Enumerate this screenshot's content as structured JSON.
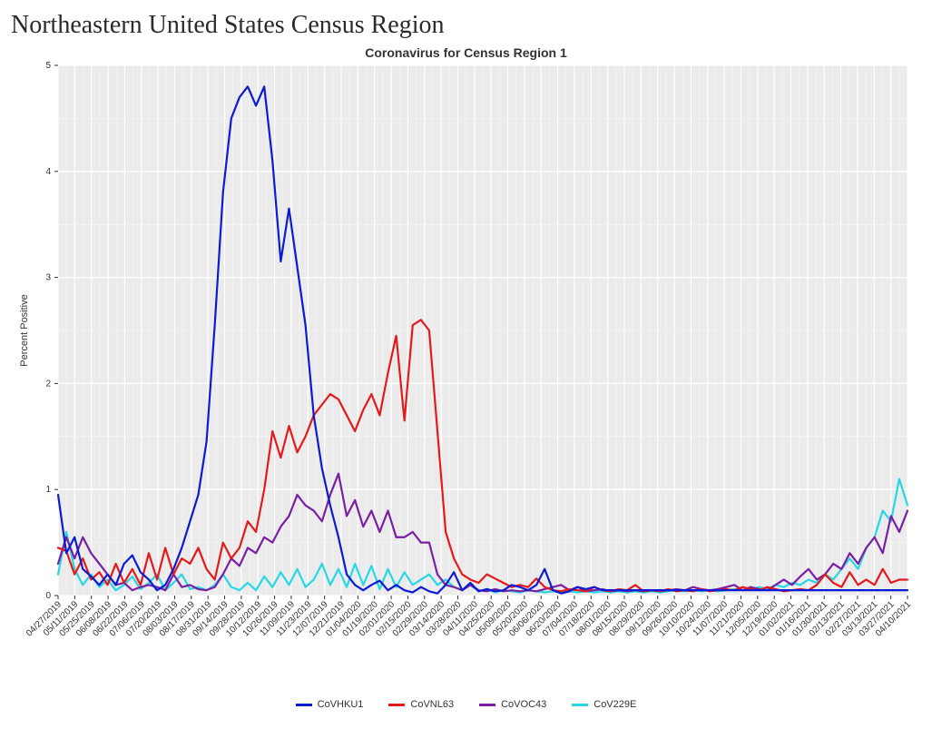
{
  "page_title": "Northeastern United States Census Region",
  "chart": {
    "type": "line",
    "title": "Coronavirus for Census Region 1",
    "title_fontsize": 14,
    "ylabel": "Percent Positive",
    "label_fontsize": 11,
    "ylim": [
      0,
      5
    ],
    "ytick_step": 1,
    "background_color": "#ebebeb",
    "grid_major_color": "#ffffff",
    "grid_minor_color": "#f5f5f5",
    "line_width": 2.2,
    "x_labels": [
      "04/27/2019",
      "05/11/2019",
      "05/25/2019",
      "06/08/2019",
      "06/22/2019",
      "07/06/2019",
      "07/20/2019",
      "08/03/2019",
      "08/17/2019",
      "08/31/2019",
      "09/14/2019",
      "09/28/2019",
      "10/12/2019",
      "10/26/2019",
      "11/09/2019",
      "11/23/2019",
      "12/07/2019",
      "12/21/2019",
      "01/04/2020",
      "01/19/2020",
      "02/01/2020",
      "02/15/2020",
      "02/29/2020",
      "03/14/2020",
      "03/28/2020",
      "04/11/2020",
      "04/25/2020",
      "05/09/2020",
      "05/20/2020",
      "06/06/2020",
      "06/20/2020",
      "07/04/2020",
      "07/18/2020",
      "08/01/2020",
      "08/15/2020",
      "08/29/2020",
      "09/12/2020",
      "09/26/2020",
      "10/10/2020",
      "10/24/2020",
      "11/07/2020",
      "11/21/2020",
      "12/05/2020",
      "12/19/2020",
      "01/02/2021",
      "01/16/2021",
      "01/30/2021",
      "02/13/2021",
      "02/27/2021",
      "03/13/2021",
      "03/27/2021",
      "04/10/2021"
    ],
    "series": [
      {
        "name": "CoVHKU1",
        "color": "#0b1bd1",
        "values": [
          0.95,
          0.4,
          0.55,
          0.25,
          0.18,
          0.1,
          0.2,
          0.1,
          0.3,
          0.38,
          0.22,
          0.15,
          0.05,
          0.1,
          0.25,
          0.45,
          0.7,
          0.95,
          1.45,
          2.55,
          3.8,
          4.5,
          4.7,
          4.8,
          4.62,
          4.8,
          4.1,
          3.15,
          3.65,
          3.1,
          2.55,
          1.7,
          1.2,
          0.85,
          0.55,
          0.2,
          0.1,
          0.05,
          0.1,
          0.14,
          0.05,
          0.1,
          0.05,
          0.03,
          0.08,
          0.04,
          0.02,
          0.1,
          0.22,
          0.05,
          0.12,
          0.04,
          0.06,
          0.04,
          0.05,
          0.1,
          0.08,
          0.05,
          0.1,
          0.25,
          0.05,
          0.02,
          0.04,
          0.08,
          0.06,
          0.08,
          0.05,
          0.05,
          0.05,
          0.05,
          0.05,
          0.05,
          0.05,
          0.05,
          0.05,
          0.05,
          0.05,
          0.05,
          0.05,
          0.05,
          0.05,
          0.05,
          0.05,
          0.05,
          0.05,
          0.05,
          0.05,
          0.05,
          0.05,
          0.05,
          0.05,
          0.05,
          0.05,
          0.05,
          0.05,
          0.05,
          0.05,
          0.05,
          0.05,
          0.05,
          0.05,
          0.05,
          0.05,
          0.05
        ]
      },
      {
        "name": "CoVNL63",
        "color": "#e31a1c",
        "values": [
          0.45,
          0.42,
          0.2,
          0.35,
          0.15,
          0.22,
          0.1,
          0.3,
          0.12,
          0.25,
          0.1,
          0.4,
          0.15,
          0.45,
          0.2,
          0.35,
          0.3,
          0.45,
          0.25,
          0.15,
          0.5,
          0.35,
          0.45,
          0.7,
          0.6,
          1.0,
          1.55,
          1.3,
          1.6,
          1.35,
          1.5,
          1.7,
          1.8,
          1.9,
          1.85,
          1.7,
          1.55,
          1.75,
          1.9,
          1.7,
          2.1,
          2.45,
          1.65,
          2.55,
          2.6,
          2.5,
          1.55,
          0.6,
          0.35,
          0.2,
          0.15,
          0.12,
          0.2,
          0.16,
          0.12,
          0.08,
          0.1,
          0.08,
          0.16,
          0.08,
          0.05,
          0.04,
          0.06,
          0.05,
          0.04,
          0.08,
          0.05,
          0.04,
          0.06,
          0.05,
          0.1,
          0.04,
          0.05,
          0.04,
          0.06,
          0.04,
          0.05,
          0.04,
          0.06,
          0.04,
          0.05,
          0.06,
          0.05,
          0.08,
          0.06,
          0.05,
          0.08,
          0.06,
          0.04,
          0.05,
          0.06,
          0.05,
          0.1,
          0.2,
          0.12,
          0.08,
          0.22,
          0.1,
          0.15,
          0.1,
          0.25,
          0.12,
          0.15,
          0.15
        ]
      },
      {
        "name": "CoVOC43",
        "color": "#7a1fa2",
        "values": [
          0.3,
          0.55,
          0.35,
          0.55,
          0.4,
          0.3,
          0.2,
          0.1,
          0.12,
          0.05,
          0.08,
          0.1,
          0.08,
          0.05,
          0.2,
          0.08,
          0.1,
          0.06,
          0.05,
          0.08,
          0.2,
          0.35,
          0.28,
          0.45,
          0.4,
          0.55,
          0.5,
          0.65,
          0.75,
          0.95,
          0.85,
          0.8,
          0.7,
          0.95,
          1.15,
          0.75,
          0.9,
          0.65,
          0.8,
          0.6,
          0.8,
          0.55,
          0.55,
          0.6,
          0.5,
          0.5,
          0.2,
          0.1,
          0.08,
          0.05,
          0.1,
          0.05,
          0.04,
          0.06,
          0.04,
          0.05,
          0.04,
          0.05,
          0.04,
          0.06,
          0.08,
          0.1,
          0.05,
          0.08,
          0.04,
          0.05,
          0.06,
          0.04,
          0.05,
          0.04,
          0.05,
          0.04,
          0.05,
          0.04,
          0.05,
          0.06,
          0.05,
          0.08,
          0.06,
          0.05,
          0.06,
          0.08,
          0.1,
          0.05,
          0.08,
          0.06,
          0.05,
          0.1,
          0.15,
          0.1,
          0.18,
          0.25,
          0.15,
          0.2,
          0.3,
          0.25,
          0.4,
          0.3,
          0.45,
          0.55,
          0.4,
          0.75,
          0.6,
          0.8
        ]
      },
      {
        "name": "CoV229E",
        "color": "#27d7e6",
        "values": [
          0.2,
          0.6,
          0.25,
          0.1,
          0.2,
          0.08,
          0.15,
          0.05,
          0.1,
          0.18,
          0.06,
          0.12,
          0.2,
          0.05,
          0.12,
          0.2,
          0.06,
          0.08,
          0.05,
          0.1,
          0.2,
          0.08,
          0.05,
          0.12,
          0.05,
          0.18,
          0.08,
          0.22,
          0.1,
          0.25,
          0.08,
          0.15,
          0.3,
          0.1,
          0.25,
          0.08,
          0.3,
          0.1,
          0.28,
          0.06,
          0.25,
          0.08,
          0.22,
          0.1,
          0.15,
          0.2,
          0.1,
          0.15,
          0.08,
          0.05,
          0.1,
          0.04,
          0.06,
          0.03,
          0.05,
          0.04,
          0.03,
          0.05,
          0.04,
          0.03,
          0.04,
          0.03,
          0.04,
          0.03,
          0.04,
          0.03,
          0.04,
          0.03,
          0.04,
          0.03,
          0.04,
          0.03,
          0.04,
          0.03,
          0.04,
          0.05,
          0.04,
          0.05,
          0.04,
          0.05,
          0.04,
          0.05,
          0.06,
          0.05,
          0.06,
          0.08,
          0.06,
          0.1,
          0.08,
          0.12,
          0.1,
          0.15,
          0.12,
          0.2,
          0.15,
          0.25,
          0.35,
          0.25,
          0.45,
          0.55,
          0.8,
          0.7,
          1.1,
          0.85
        ]
      }
    ]
  }
}
